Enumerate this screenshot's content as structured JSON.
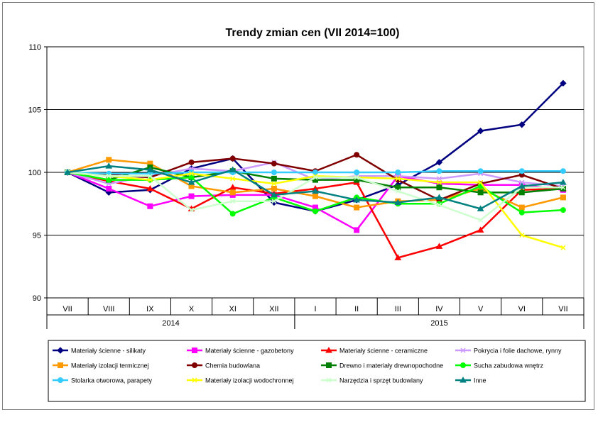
{
  "chart_data": {
    "type": "line",
    "title": "Trendy zmian cen (VII 2014=100)",
    "categories": [
      "VII",
      "VIII",
      "IX",
      "X",
      "XI",
      "XII",
      "I",
      "II",
      "III",
      "IV",
      "V",
      "VI",
      "VII"
    ],
    "year_groups": [
      {
        "label": "2014",
        "count": 6
      },
      {
        "label": "2015",
        "count": 7
      }
    ],
    "ylim": [
      90,
      110
    ],
    "yticks": [
      90,
      95,
      100,
      105,
      110
    ],
    "grid": true,
    "legend_position": "bottom",
    "series": [
      {
        "name": "Materiały ścienne - silikaty",
        "color": "#000080",
        "marker": "diamond",
        "values": [
          100,
          98.4,
          98.6,
          100.3,
          101.1,
          97.6,
          96.9,
          97.8,
          99.0,
          100.8,
          103.3,
          103.8,
          107.1
        ]
      },
      {
        "name": "Materiały ścienne - gazobetony",
        "color": "#ff00ff",
        "marker": "square",
        "values": [
          100,
          98.7,
          97.3,
          98.1,
          98.2,
          98.2,
          97.2,
          95.4,
          99.7,
          99.1,
          99.0,
          99.0,
          98.6
        ]
      },
      {
        "name": "Materiały ścienne - ceramiczne",
        "color": "#ff0000",
        "marker": "triangle",
        "values": [
          100,
          99.3,
          98.7,
          97.1,
          98.8,
          98.3,
          98.7,
          99.2,
          93.2,
          94.1,
          95.4,
          98.6,
          98.7
        ]
      },
      {
        "name": "Pokrycia i folie dachowe, rynny",
        "color": "#cc99ff",
        "marker": "x",
        "values": [
          100,
          99.1,
          99.7,
          100.3,
          100.1,
          100.8,
          99.4,
          99.7,
          99.7,
          99.5,
          99.9,
          99.2,
          98.9
        ]
      },
      {
        "name": "Materiały izolacji termicznej",
        "color": "#ff9900",
        "marker": "square",
        "values": [
          100,
          101.0,
          100.7,
          98.9,
          98.4,
          98.7,
          98.1,
          97.2,
          97.7,
          97.8,
          98.7,
          97.2,
          98.0
        ]
      },
      {
        "name": "Chemia budowlana",
        "color": "#800000",
        "marker": "circle",
        "values": [
          100,
          99.8,
          99.6,
          100.8,
          101.1,
          100.7,
          100.1,
          101.4,
          99.4,
          97.8,
          99.1,
          99.8,
          98.7
        ]
      },
      {
        "name": "Drewno i materiały drewnopochodne",
        "color": "#008000",
        "marker": "square",
        "values": [
          100,
          99.4,
          100.4,
          99.6,
          100.1,
          99.5,
          99.4,
          99.4,
          98.8,
          98.8,
          98.4,
          98.4,
          98.7
        ]
      },
      {
        "name": "Sucha zabudowa wnętrz",
        "color": "#00ff00",
        "marker": "circle",
        "values": [
          100,
          99.4,
          99.4,
          99.6,
          96.7,
          98.0,
          96.9,
          98.0,
          97.5,
          97.5,
          98.9,
          96.8,
          97.0
        ]
      },
      {
        "name": "Stolarka otworowa, parapety",
        "color": "#33ccff",
        "marker": "circle",
        "values": [
          100,
          99.9,
          99.9,
          100.0,
          100.0,
          100.0,
          100.0,
          100.0,
          100.0,
          100.1,
          100.1,
          100.1,
          100.1
        ]
      },
      {
        "name": "Materiały izolacji wodochronnej",
        "color": "#ffff00",
        "marker": "x",
        "values": [
          100,
          99.7,
          99.4,
          99.9,
          99.5,
          99.1,
          99.7,
          99.6,
          99.5,
          99.2,
          99.2,
          95.0,
          94.0
        ]
      },
      {
        "name": "Narzędzia i sprzęt budowlany",
        "color": "#ccffcc",
        "marker": "x",
        "values": [
          100,
          99.7,
          99.7,
          97.0,
          97.7,
          97.7,
          99.6,
          99.6,
          98.5,
          97.4,
          96.2,
          98.8,
          98.8
        ]
      },
      {
        "name": "Inne",
        "color": "#008080",
        "marker": "triangle",
        "values": [
          100,
          100.5,
          100.2,
          99.2,
          100.2,
          98.2,
          98.5,
          97.8,
          97.6,
          98.0,
          97.1,
          98.9,
          99.2
        ]
      }
    ]
  }
}
